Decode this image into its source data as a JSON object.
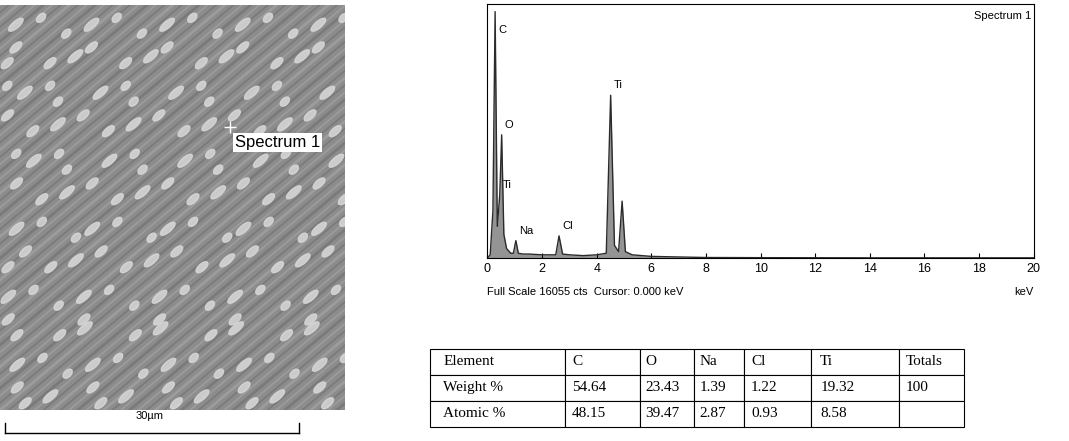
{
  "chart_data": {
    "type": "line",
    "title": "Spectrum 1",
    "x": [
      0,
      0.1,
      0.2,
      0.28,
      0.36,
      0.45,
      0.52,
      0.6,
      0.7,
      0.85,
      0.95,
      1.04,
      1.13,
      1.3,
      1.5,
      2.0,
      2.5,
      2.62,
      2.75,
      3.0,
      3.5,
      4.0,
      4.35,
      4.51,
      4.65,
      4.8,
      4.93,
      5.05,
      5.3,
      6,
      8,
      10,
      12,
      14,
      16,
      18,
      20
    ],
    "values": [
      0,
      200,
      3000,
      15600,
      2000,
      4000,
      7800,
      1500,
      600,
      300,
      300,
      1100,
      300,
      250,
      250,
      200,
      200,
      1400,
      250,
      200,
      150,
      200,
      300,
      10300,
      800,
      400,
      3600,
      400,
      200,
      100,
      30,
      20,
      15,
      10,
      10,
      10,
      10
    ],
    "color": "#2b2b2b",
    "xlim": [
      0,
      20
    ],
    "xticks": [
      0,
      2,
      4,
      6,
      8,
      10,
      12,
      14,
      16,
      18,
      20
    ],
    "ylim": [
      0,
      16055
    ],
    "yticks": [],
    "tick_labels": "x",
    "xlabel": "keV",
    "footer": "Full Scale 16055 cts  Cursor: 0.000 keV",
    "annotations": [
      {
        "text": "C",
        "x": 0.28
      },
      {
        "text": "O",
        "x": 0.52
      },
      {
        "text": "Ti",
        "x": 0.45
      },
      {
        "text": "Na",
        "x": 1.04
      },
      {
        "text": "Cl",
        "x": 2.62
      },
      {
        "text": "Ti",
        "x": 4.51
      }
    ]
  },
  "image": {
    "label": "Spectrum 1",
    "scale_bar": "30µm"
  },
  "table": {
    "columns": [
      "Element",
      "C",
      "O",
      "Na",
      "Cl",
      "Ti",
      "Totals"
    ],
    "rows": [
      [
        "Weight %",
        "54.64",
        "23.43",
        "1.39",
        "1.22",
        "19.32",
        "100"
      ],
      [
        "Atomic %",
        "48.15",
        "39.47",
        "2.87",
        "0.93",
        "8.58",
        null
      ]
    ]
  }
}
